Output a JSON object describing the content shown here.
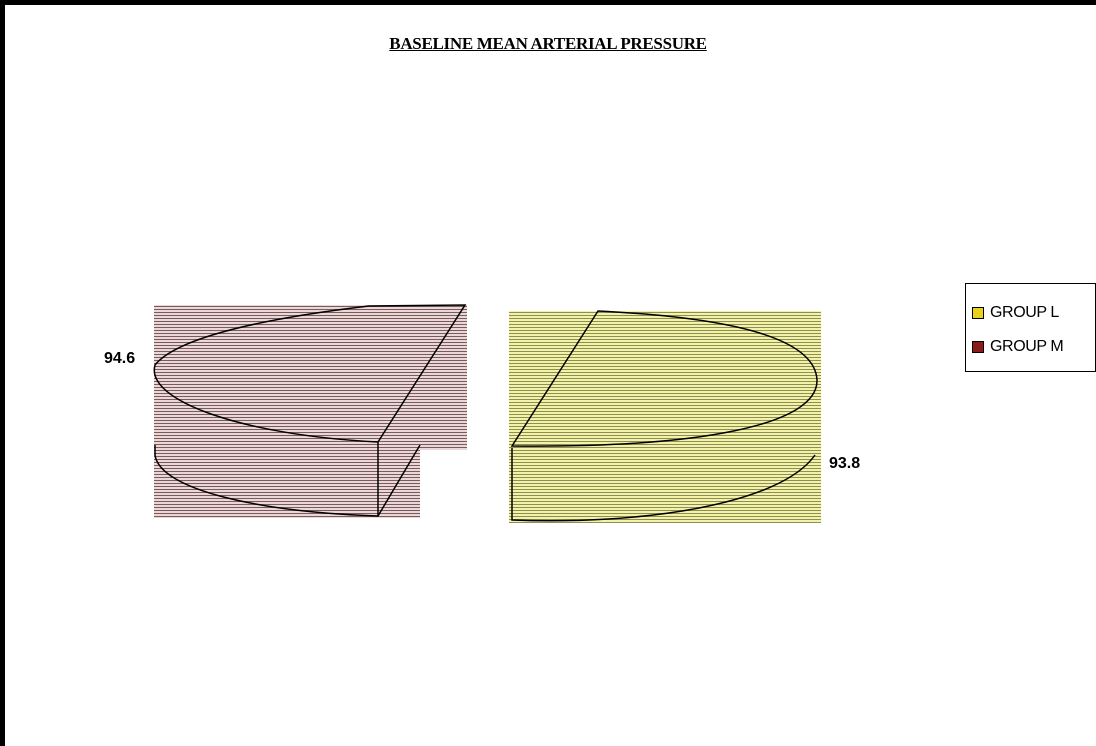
{
  "chart_data": {
    "type": "pie",
    "title": "BASELINE MEAN ARTERIAL PRESSURE",
    "slices": [
      {
        "name": "GROUP M",
        "value": 94.6,
        "label": "94.6",
        "color": "#8b1a1a"
      },
      {
        "name": "GROUP L",
        "value": 93.8,
        "label": "93.8",
        "color": "#e8d21d"
      }
    ],
    "legend": {
      "position": "right",
      "items": [
        {
          "label": "GROUP L",
          "color": "#e8d21d"
        },
        {
          "label": "GROUP M",
          "color": "#8b1a1a"
        }
      ]
    },
    "style": "3d-exploded-pie"
  }
}
